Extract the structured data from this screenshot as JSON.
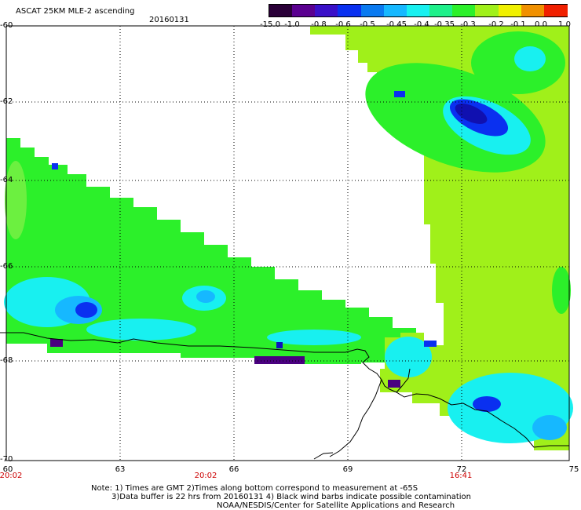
{
  "header": {
    "title": "ASCAT 25KM MLE-2 ascending",
    "date": "20160131"
  },
  "colorbar": {
    "labels": [
      "-15.0",
      "-1.0",
      "-0.8",
      "-0.6",
      "-0.5",
      "-0.45",
      "-0.4",
      "-0.35",
      "-0.3",
      "-0.2",
      "-0.1",
      "0.0",
      "1.0"
    ],
    "colors": [
      "#2a0038",
      "#5a0090",
      "#3a10c8",
      "#0a30f0",
      "#0a7af0",
      "#16b8ff",
      "#18f0f0",
      "#1ef08a",
      "#2cf02a",
      "#a0f01a",
      "#f0f000",
      "#f09000",
      "#f02000"
    ]
  },
  "map": {
    "y_axis_labels": [
      "-60",
      "-62",
      "-64",
      "-66",
      "-68",
      "-70"
    ],
    "x_axis_labels": [
      "60",
      "63",
      "66",
      "69",
      "72",
      "75"
    ],
    "time_labels": [
      "20:02",
      "20:02",
      "16:41"
    ],
    "colors": {
      "green": "#2cf02a",
      "lime": "#a0f01a",
      "cyan": "#18f0f0",
      "sky": "#16b8ff",
      "blue": "#0a30f0",
      "dark_blue": "#1010c0",
      "purple": "#4a0080",
      "coastline": "#000000"
    }
  },
  "footer": {
    "note_line1": "Note: 1) Times are GMT 2)Times along bottom correspond to measurement at -65S",
    "note_line2": "3)Data buffer is 22 hrs from 20160131 4) Black wind barbs indicate possible contamination",
    "credit": "NOAA/NESDIS/Center for Satellite Applications and Research"
  }
}
